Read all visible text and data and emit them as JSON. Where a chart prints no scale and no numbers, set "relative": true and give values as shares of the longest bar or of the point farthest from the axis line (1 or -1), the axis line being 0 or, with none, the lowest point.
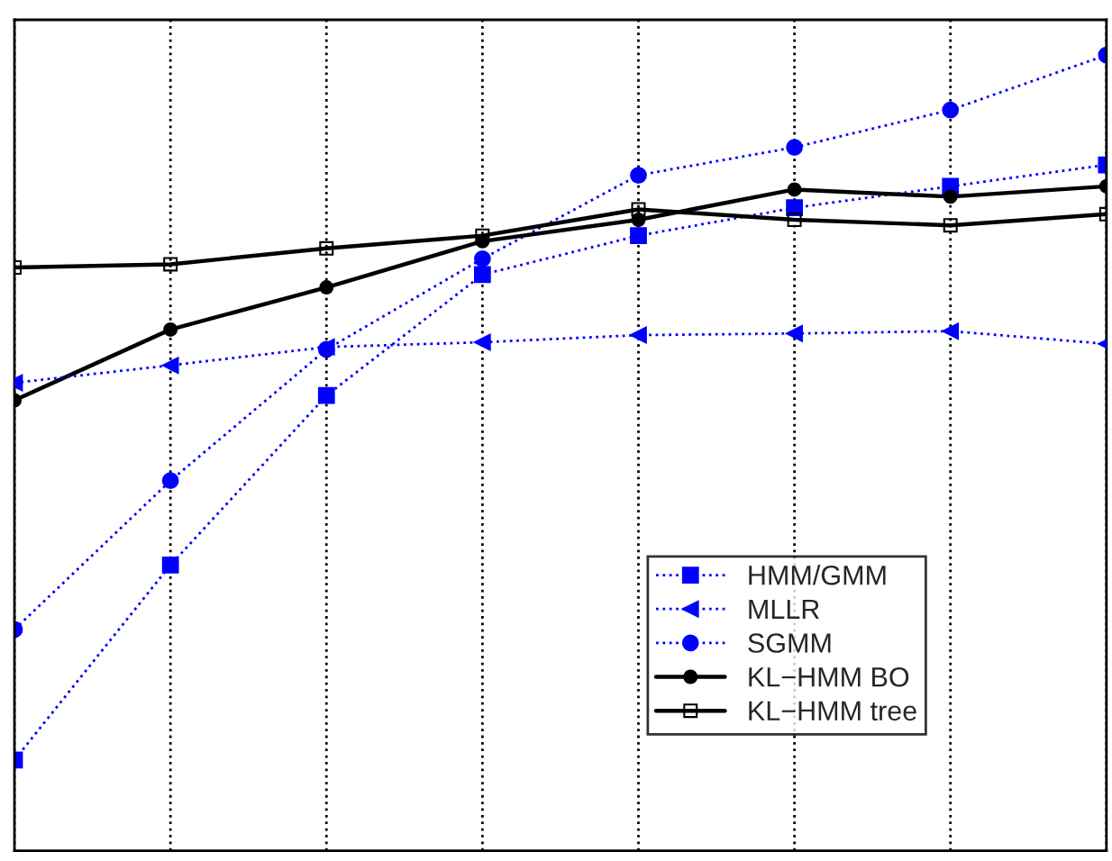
{
  "chart_data": {
    "type": "line",
    "relative": true,
    "grid": "x",
    "legend": "bottom right",
    "categories": [
      null,
      null,
      null,
      null,
      null,
      null,
      null,
      null
    ],
    "series": [
      {
        "name": "HMM/GMM",
        "color": "#0000ff",
        "marker": "square",
        "line_style": "dotted",
        "values": [
          0.114,
          0.359,
          0.572,
          0.724,
          0.773,
          0.808,
          0.835,
          0.862
        ]
      },
      {
        "name": "MLLR",
        "color": "#0000ff",
        "marker": "triangle",
        "line_style": "dotted",
        "values": [
          0.588,
          0.61,
          0.633,
          0.639,
          0.648,
          0.65,
          0.653,
          0.637
        ]
      },
      {
        "name": "SGMM",
        "color": "#0000ff",
        "marker": "circle",
        "line_style": "dotted",
        "values": [
          0.278,
          0.465,
          0.63,
          0.744,
          0.849,
          0.884,
          0.931,
          1
        ]
      },
      {
        "name": "KL−HMM BO",
        "color": "#000000",
        "marker": "circle",
        "line_style": "solid",
        "values": [
          0.566,
          0.655,
          0.708,
          0.766,
          0.793,
          0.831,
          0.822,
          0.835
        ]
      },
      {
        "name": "KL−HMM tree",
        "color": "#000000",
        "marker": "square",
        "line_style": "solid",
        "values": [
          0.733,
          0.737,
          0.757,
          0.773,
          0.806,
          0.793,
          0.786,
          0.8
        ]
      }
    ]
  }
}
